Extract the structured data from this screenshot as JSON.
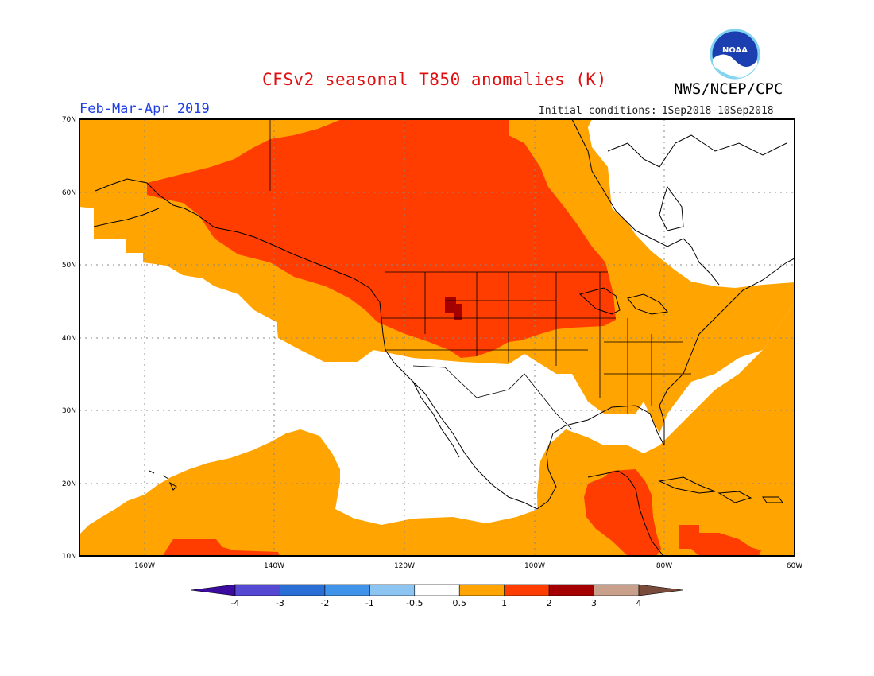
{
  "header": {
    "title": "CFSv2 seasonal T850 anomalies (K)",
    "agency": "NWS/NCEP/CPC",
    "season": "Feb-Mar-Apr 2019",
    "ic_label": "Initial conditions:",
    "ic_range": "1Sep2018-10Sep2018",
    "logo_text": "NOAA"
  },
  "map": {
    "lat_labels": [
      "70N",
      "60N",
      "50N",
      "40N",
      "30N",
      "20N",
      "10N"
    ],
    "lon_labels": [
      "160W",
      "140W",
      "120W",
      "100W",
      "80W",
      "60W"
    ]
  },
  "legend": {
    "colors": [
      "#3b0a9e",
      "#5548d2",
      "#2a6fd6",
      "#3f94ea",
      "#8cc4f2",
      "#ffffff",
      "#ffa400",
      "#ff3d00",
      "#a50000",
      "#c9a08c",
      "#7a4b3a"
    ],
    "labels": [
      "-4",
      "-3",
      "-2",
      "-1",
      "-0.5",
      "0.5",
      "1",
      "2",
      "3",
      "4"
    ]
  },
  "anomaly_colors": {
    "orange": "#ffa400",
    "red": "#ff3d00",
    "dark_red": "#a50000"
  }
}
